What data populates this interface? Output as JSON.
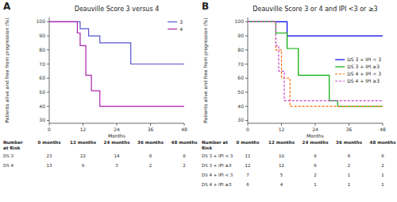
{
  "chart_data": [
    {
      "type": "step",
      "panel_label": "A",
      "title": "Deauville Score 3 versus 4",
      "x_label": "Months",
      "y_label": "Patients alive and free from progression (%)",
      "series": [
        {
          "name": "3",
          "color": "#5555cc",
          "line_style": "solid",
          "x": [
            0,
            11,
            11,
            14,
            14,
            18,
            18,
            29,
            29,
            32,
            32,
            48
          ],
          "values": [
            100,
            100,
            95,
            95,
            90,
            90,
            85,
            85,
            70,
            70,
            70,
            70
          ]
        },
        {
          "name": "4",
          "color": "#aa22aa",
          "line_style": "solid",
          "x": [
            0,
            10,
            10,
            11,
            11,
            13,
            13,
            15,
            15,
            18,
            18,
            20,
            20,
            48
          ],
          "values": [
            100,
            100,
            92,
            92,
            83,
            83,
            62,
            62,
            51,
            51,
            40,
            40,
            40,
            40
          ]
        }
      ],
      "xlim": [
        0,
        48
      ],
      "xticks": [
        0,
        12,
        24,
        36,
        48
      ],
      "ylim": [
        28,
        103
      ],
      "yticks": [
        30,
        40,
        50,
        60,
        70,
        80,
        90,
        100
      ],
      "grid": false,
      "legend": "upper right",
      "risk_table": {
        "header": "Number\nat Risk",
        "rows": [
          "DS 3",
          "DS 4"
        ],
        "timepoints": [
          "0 months",
          "12 months",
          "24 months",
          "36 months",
          "48 months"
        ],
        "time_values": [
          0,
          12,
          24,
          36,
          48
        ],
        "values": [
          [
            23,
            22,
            14,
            8,
            8
          ],
          [
            13,
            9,
            3,
            2,
            2
          ]
        ]
      }
    },
    {
      "type": "step",
      "panel_label": "B",
      "title": "Deauville Score 3 or 4 and IPI <3 or ≥3",
      "x_label": "Months",
      "y_label": "Patients alive and free from progression (%)",
      "series": [
        {
          "name": "DS 3 + IPI < 3",
          "color": "#0000ee",
          "line_style": "solid",
          "x": [
            0,
            14,
            14,
            18,
            18,
            48
          ],
          "values": [
            100,
            100,
            90,
            90,
            90,
            90
          ]
        },
        {
          "name": "DS 3 + IPI ≥3",
          "color": "#00aa00",
          "line_style": "solid",
          "x": [
            0,
            10,
            10,
            14,
            14,
            18,
            18,
            29,
            29,
            32,
            32,
            48
          ],
          "values": [
            100,
            100,
            92,
            92,
            81,
            81,
            62,
            62,
            44,
            44,
            40,
            40
          ]
        },
        {
          "name": "DS 4 + IPI < 3",
          "color": "#ff6600",
          "line_style": "dashed",
          "x": [
            0,
            10,
            10,
            12,
            12,
            15,
            15,
            18,
            18,
            32,
            32,
            48
          ],
          "values": [
            100,
            100,
            80,
            80,
            60,
            60,
            40,
            40,
            40,
            40,
            40,
            40
          ]
        },
        {
          "name": "DS 4 + IPI ≥3",
          "color": "#cc44cc",
          "line_style": "dashed",
          "x": [
            0,
            10,
            10,
            11,
            11,
            13,
            13,
            16,
            16,
            48
          ],
          "values": [
            100,
            100,
            83,
            83,
            65,
            65,
            44,
            44,
            44,
            44
          ]
        }
      ],
      "xlim": [
        0,
        48
      ],
      "xticks": [
        0,
        12,
        24,
        36,
        48
      ],
      "ylim": [
        28,
        103
      ],
      "yticks": [
        30,
        40,
        50,
        60,
        70,
        80,
        90,
        100
      ],
      "grid": false,
      "legend": "center right",
      "risk_table": {
        "header": "Number at\nRisk",
        "rows": [
          "DS 3 + IPI < 3",
          "DS 3 + IPI ≥3",
          "DS 4 + IPI < 3",
          "DS 4 + IPI ≥3"
        ],
        "timepoints": [
          "0 months",
          "12 months",
          "24 months",
          "36 months",
          "48 months"
        ],
        "time_values": [
          0,
          12,
          24,
          36,
          48
        ],
        "values": [
          [
            11,
            10,
            8,
            6,
            6
          ],
          [
            12,
            12,
            6,
            2,
            2
          ],
          [
            7,
            5,
            2,
            1,
            1
          ],
          [
            6,
            4,
            1,
            1,
            1
          ]
        ]
      }
    }
  ]
}
